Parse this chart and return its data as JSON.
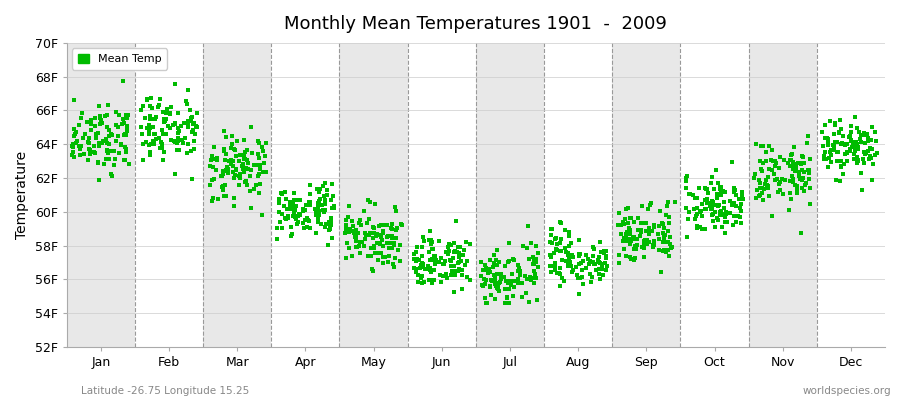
{
  "title": "Monthly Mean Temperatures 1901  -  2009",
  "ylabel": "Temperature",
  "subtitle_left": "Latitude -26.75 Longitude 15.25",
  "subtitle_right": "worldspecies.org",
  "legend_label": "Mean Temp",
  "dot_color": "#00bb00",
  "background_color": "#ffffff",
  "plot_bg_color": "#ffffff",
  "band_color": "#e8e8e8",
  "ylim": [
    52,
    70
  ],
  "yticks": [
    52,
    54,
    56,
    58,
    60,
    62,
    64,
    66,
    68,
    70
  ],
  "ytick_labels": [
    "52F",
    "54F",
    "56F",
    "58F",
    "60F",
    "62F",
    "64F",
    "66F",
    "68F",
    "70F"
  ],
  "months": [
    "Jan",
    "Feb",
    "Mar",
    "Apr",
    "May",
    "Jun",
    "Jul",
    "Aug",
    "Sep",
    "Oct",
    "Nov",
    "Dec"
  ],
  "month_means": [
    64.4,
    64.8,
    62.5,
    60.0,
    58.5,
    57.0,
    56.2,
    57.2,
    58.8,
    60.5,
    62.2,
    63.8
  ],
  "month_stds": [
    1.0,
    1.1,
    1.0,
    0.8,
    0.8,
    0.8,
    0.85,
    0.8,
    0.9,
    0.9,
    1.0,
    0.9
  ],
  "n_years": 109,
  "seed": 12,
  "marker_size": 3,
  "dpi": 100,
  "figsize": [
    9.0,
    4.0
  ]
}
